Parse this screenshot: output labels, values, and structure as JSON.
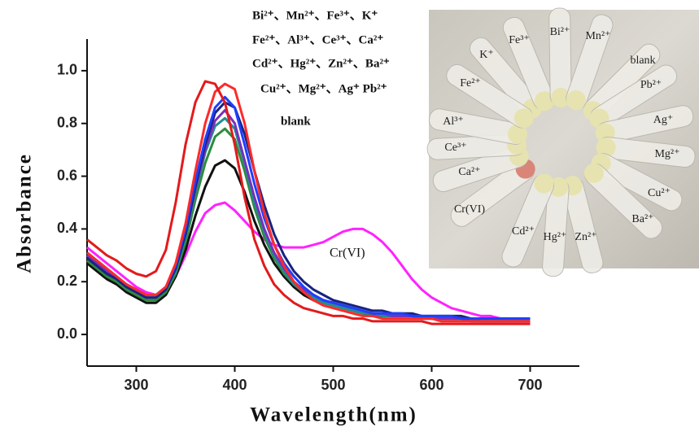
{
  "chart_data": {
    "type": "line",
    "x_label": "Wavelength(nm)",
    "y_label": "Absorbance",
    "xlim": [
      250,
      750
    ],
    "ylim": [
      -0.12,
      1.12
    ],
    "xticks": [
      300,
      400,
      500,
      600,
      700
    ],
    "yticks": [
      {
        "value": 0,
        "label": "0.0"
      },
      0.2,
      0.4,
      0.6,
      0.8,
      {
        "value": 1,
        "label": "1.0"
      }
    ],
    "annotations": [
      "Bi²⁺、Mn²⁺、Fe³⁺、K⁺",
      "Fe²⁺、Al³⁺、Ce³⁺、Ca²⁺",
      "Cd²⁺、Hg²⁺、Zn²⁺、Ba²⁺",
      "Cu²⁺、Mg²⁺、Ag⁺ Pb²⁺",
      "blank"
    ],
    "inset_labels": [
      "K⁺",
      "Fe³⁺",
      "Bi²⁺",
      "Mn²⁺",
      "blank",
      "Pb²⁺",
      "Ag⁺",
      "Mg²⁺",
      "Cu²⁺",
      "Ba²⁺",
      "Zn²⁺",
      "Hg²⁺",
      "Cd²⁺",
      "Cr(VI)",
      "Ca²⁺",
      "Ce³⁺",
      "Al³⁺",
      "Fe²⁺"
    ],
    "x": [
      250,
      260,
      270,
      280,
      290,
      300,
      310,
      320,
      330,
      340,
      350,
      360,
      370,
      380,
      390,
      400,
      410,
      420,
      430,
      440,
      450,
      460,
      470,
      480,
      490,
      500,
      510,
      520,
      530,
      540,
      550,
      560,
      570,
      580,
      590,
      600,
      610,
      620,
      630,
      640,
      650,
      660,
      670,
      680,
      690,
      700
    ],
    "series": [
      {
        "name": "Cr(VI)",
        "color": "#ff22ff",
        "values": [
          0.33,
          0.3,
          0.27,
          0.24,
          0.21,
          0.18,
          0.16,
          0.15,
          0.17,
          0.22,
          0.3,
          0.39,
          0.46,
          0.49,
          0.5,
          0.47,
          0.43,
          0.39,
          0.36,
          0.34,
          0.33,
          0.33,
          0.33,
          0.34,
          0.35,
          0.37,
          0.39,
          0.4,
          0.4,
          0.38,
          0.35,
          0.31,
          0.26,
          0.21,
          0.17,
          0.14,
          0.12,
          0.1,
          0.09,
          0.08,
          0.07,
          0.07,
          0.06,
          0.06,
          0.06,
          0.06
        ]
      },
      {
        "color": "#111111",
        "values": [
          0.27,
          0.24,
          0.21,
          0.19,
          0.16,
          0.14,
          0.12,
          0.12,
          0.15,
          0.22,
          0.32,
          0.45,
          0.56,
          0.64,
          0.66,
          0.63,
          0.54,
          0.43,
          0.34,
          0.27,
          0.22,
          0.18,
          0.15,
          0.13,
          0.12,
          0.11,
          0.1,
          0.09,
          0.08,
          0.07,
          0.07,
          0.07,
          0.07,
          0.07,
          0.06,
          0.06,
          0.06,
          0.06,
          0.06,
          0.06,
          0.05,
          0.05,
          0.05,
          0.05,
          0.05,
          0.05
        ]
      },
      {
        "color": "#2e8b3e",
        "values": [
          0.28,
          0.25,
          0.22,
          0.2,
          0.17,
          0.15,
          0.13,
          0.13,
          0.16,
          0.23,
          0.35,
          0.51,
          0.65,
          0.75,
          0.78,
          0.74,
          0.62,
          0.48,
          0.37,
          0.29,
          0.23,
          0.19,
          0.16,
          0.14,
          0.12,
          0.11,
          0.1,
          0.09,
          0.08,
          0.08,
          0.07,
          0.07,
          0.07,
          0.07,
          0.07,
          0.06,
          0.06,
          0.06,
          0.06,
          0.06,
          0.05,
          0.05,
          0.05,
          0.05,
          0.05,
          0.05
        ]
      },
      {
        "color": "#1f8f8f",
        "values": [
          0.3,
          0.27,
          0.24,
          0.21,
          0.18,
          0.16,
          0.14,
          0.14,
          0.17,
          0.24,
          0.37,
          0.54,
          0.69,
          0.79,
          0.82,
          0.78,
          0.65,
          0.5,
          0.39,
          0.3,
          0.24,
          0.19,
          0.16,
          0.14,
          0.12,
          0.11,
          0.1,
          0.09,
          0.08,
          0.08,
          0.07,
          0.07,
          0.07,
          0.07,
          0.07,
          0.06,
          0.06,
          0.06,
          0.06,
          0.06,
          0.05,
          0.05,
          0.05,
          0.05,
          0.05,
          0.05
        ]
      },
      {
        "color": "#7b2fbe",
        "values": [
          0.3,
          0.27,
          0.24,
          0.21,
          0.18,
          0.16,
          0.14,
          0.14,
          0.17,
          0.25,
          0.38,
          0.55,
          0.7,
          0.81,
          0.85,
          0.8,
          0.66,
          0.52,
          0.4,
          0.31,
          0.25,
          0.2,
          0.17,
          0.15,
          0.13,
          0.12,
          0.11,
          0.1,
          0.09,
          0.08,
          0.08,
          0.07,
          0.07,
          0.07,
          0.06,
          0.06,
          0.06,
          0.06,
          0.06,
          0.05,
          0.05,
          0.05,
          0.05,
          0.05,
          0.05,
          0.05
        ]
      },
      {
        "color": "#1a237e",
        "values": [
          0.29,
          0.26,
          0.23,
          0.21,
          0.18,
          0.16,
          0.14,
          0.14,
          0.17,
          0.25,
          0.38,
          0.56,
          0.72,
          0.84,
          0.88,
          0.86,
          0.76,
          0.62,
          0.49,
          0.38,
          0.3,
          0.24,
          0.2,
          0.17,
          0.15,
          0.13,
          0.12,
          0.11,
          0.1,
          0.09,
          0.09,
          0.08,
          0.08,
          0.08,
          0.07,
          0.07,
          0.07,
          0.07,
          0.07,
          0.06,
          0.06,
          0.06,
          0.06,
          0.06,
          0.06,
          0.06
        ]
      },
      {
        "color": "#1f3fff",
        "values": [
          0.31,
          0.28,
          0.25,
          0.22,
          0.19,
          0.17,
          0.15,
          0.15,
          0.18,
          0.26,
          0.4,
          0.58,
          0.74,
          0.86,
          0.9,
          0.86,
          0.72,
          0.57,
          0.44,
          0.34,
          0.27,
          0.22,
          0.18,
          0.15,
          0.13,
          0.12,
          0.11,
          0.1,
          0.09,
          0.08,
          0.08,
          0.08,
          0.08,
          0.07,
          0.07,
          0.07,
          0.07,
          0.07,
          0.06,
          0.06,
          0.06,
          0.06,
          0.06,
          0.06,
          0.06,
          0.06
        ]
      },
      {
        "color": "#ff2a2a",
        "values": [
          0.31,
          0.28,
          0.25,
          0.22,
          0.19,
          0.17,
          0.15,
          0.15,
          0.18,
          0.27,
          0.42,
          0.62,
          0.8,
          0.92,
          0.95,
          0.93,
          0.8,
          0.62,
          0.46,
          0.34,
          0.26,
          0.2,
          0.16,
          0.13,
          0.11,
          0.1,
          0.09,
          0.08,
          0.07,
          0.07,
          0.06,
          0.06,
          0.06,
          0.06,
          0.06,
          0.06,
          0.05,
          0.05,
          0.05,
          0.05,
          0.05,
          0.05,
          0.05,
          0.05,
          0.05,
          0.05
        ]
      },
      {
        "color": "#e31a1c",
        "values": [
          0.36,
          0.33,
          0.3,
          0.28,
          0.25,
          0.23,
          0.22,
          0.24,
          0.32,
          0.5,
          0.72,
          0.88,
          0.96,
          0.95,
          0.88,
          0.72,
          0.52,
          0.36,
          0.26,
          0.19,
          0.15,
          0.12,
          0.1,
          0.09,
          0.08,
          0.07,
          0.07,
          0.06,
          0.06,
          0.05,
          0.05,
          0.05,
          0.05,
          0.05,
          0.05,
          0.04,
          0.04,
          0.04,
          0.04,
          0.04,
          0.04,
          0.04,
          0.04,
          0.04,
          0.04,
          0.04
        ]
      }
    ]
  }
}
